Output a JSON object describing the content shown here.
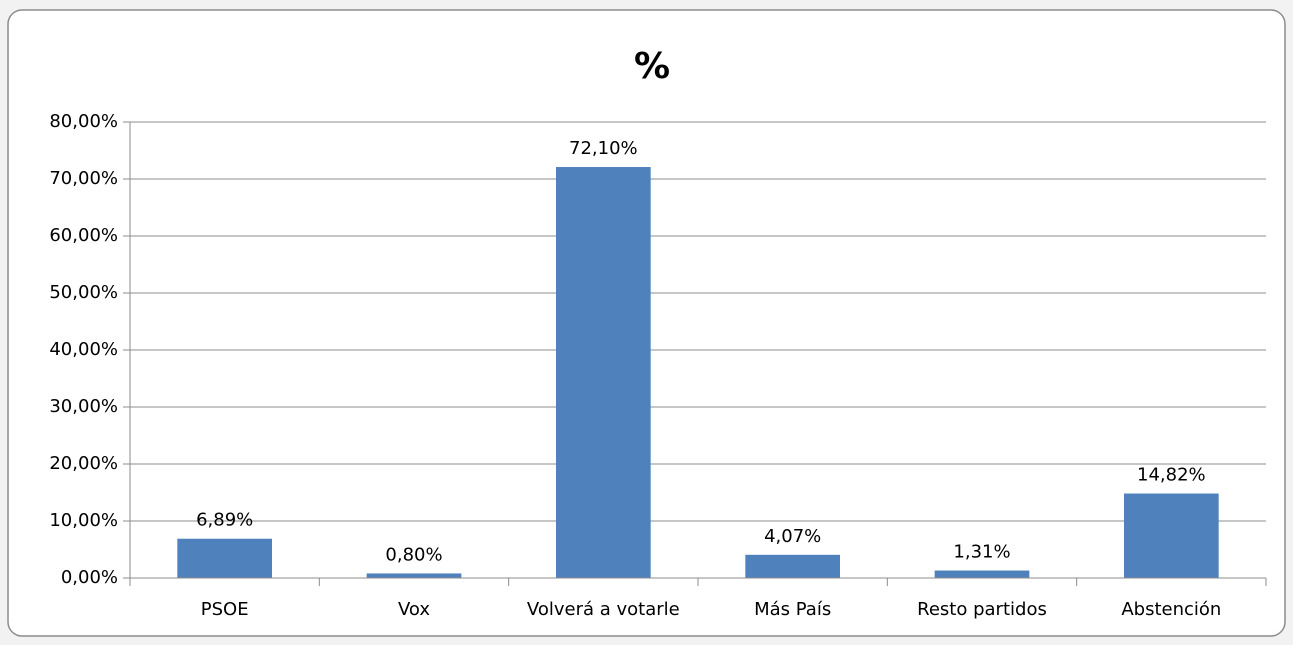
{
  "chart_data": {
    "type": "bar",
    "title": "%",
    "categories": [
      "PSOE",
      "Vox",
      "Volverá a votarle",
      "Más País",
      "Resto partidos",
      "Abstención"
    ],
    "values": [
      6.89,
      0.8,
      72.1,
      4.07,
      1.31,
      14.82
    ],
    "value_labels": [
      "6,89%",
      "0,80%",
      "72,10%",
      "4,07%",
      "1,31%",
      "14,82%"
    ],
    "color": "#4f81bd",
    "ylim": [
      0,
      80
    ],
    "yticks": [
      {
        "value": 0,
        "label": "0,00%"
      },
      {
        "value": 10,
        "label": "10,00%"
      },
      {
        "value": 20,
        "label": "20,00%"
      },
      {
        "value": 30,
        "label": "30,00%"
      },
      {
        "value": 40,
        "label": "40,00%"
      },
      {
        "value": 50,
        "label": "50,00%"
      },
      {
        "value": 60,
        "label": "60,00%"
      },
      {
        "value": 70,
        "label": "70,00%"
      },
      {
        "value": 80,
        "label": "80,00%"
      }
    ],
    "grid": true
  }
}
